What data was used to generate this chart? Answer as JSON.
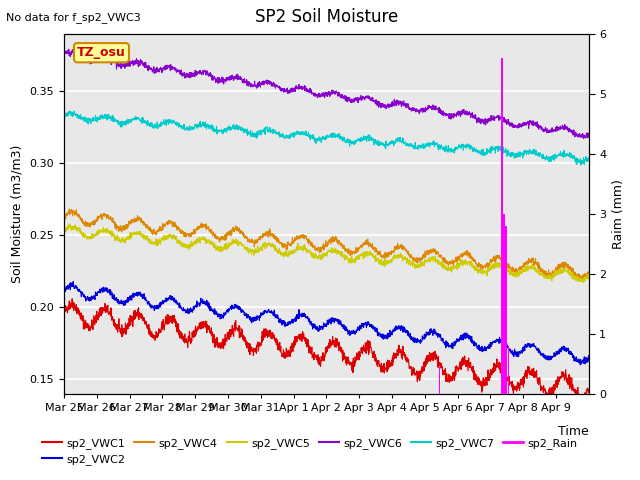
{
  "title": "SP2 Soil Moisture",
  "subtitle": "No data for f_sp2_VWC3",
  "xlabel": "Time",
  "ylabel_left": "Soil Moisture (m3/m3)",
  "ylabel_right": "Raim (mm)",
  "tz_label": "TZ_osu",
  "xlim_days": [
    0,
    16.0
  ],
  "ylim_left": [
    0.14,
    0.39
  ],
  "ylim_right": [
    0.0,
    6.0
  ],
  "tick_labels": [
    "Mar 25",
    "Mar 26",
    "Mar 27",
    "Mar 28",
    "Mar 29",
    "Mar 30",
    "Mar 31",
    "Apr 1",
    "Apr 2",
    "Apr 3",
    "Apr 4",
    "Apr 5",
    "Apr 6",
    "Apr 7",
    "Apr 8",
    "Apr 9"
  ],
  "series": {
    "sp2_VWC1": {
      "color": "#dd0000",
      "start": 0.196,
      "end": 0.143,
      "osc": 0.007,
      "noise": 0.002
    },
    "sp2_VWC2": {
      "color": "#0000dd",
      "start": 0.212,
      "end": 0.165,
      "osc": 0.004,
      "noise": 0.001
    },
    "sp2_VWC4": {
      "color": "#dd8800",
      "start": 0.263,
      "end": 0.224,
      "osc": 0.004,
      "noise": 0.001
    },
    "sp2_VWC5": {
      "color": "#cccc00",
      "start": 0.253,
      "end": 0.221,
      "osc": 0.003,
      "noise": 0.001
    },
    "sp2_VWC6": {
      "color": "#8800cc",
      "start": 0.376,
      "end": 0.32,
      "osc": 0.002,
      "noise": 0.001
    },
    "sp2_VWC7": {
      "color": "#00cccc",
      "start": 0.333,
      "end": 0.303,
      "osc": 0.002,
      "noise": 0.001
    }
  },
  "rain_events": [
    {
      "day": 11.45,
      "height": 0.45
    },
    {
      "day": 13.35,
      "height": 5.6
    },
    {
      "day": 13.42,
      "height": 3.0
    },
    {
      "day": 13.48,
      "height": 2.8
    },
    {
      "day": 13.55,
      "height": 0.8
    }
  ],
  "bg_color": "#e8e8e8",
  "grid_color": "#ffffff",
  "title_fontsize": 12,
  "label_fontsize": 9,
  "tick_fontsize": 8
}
